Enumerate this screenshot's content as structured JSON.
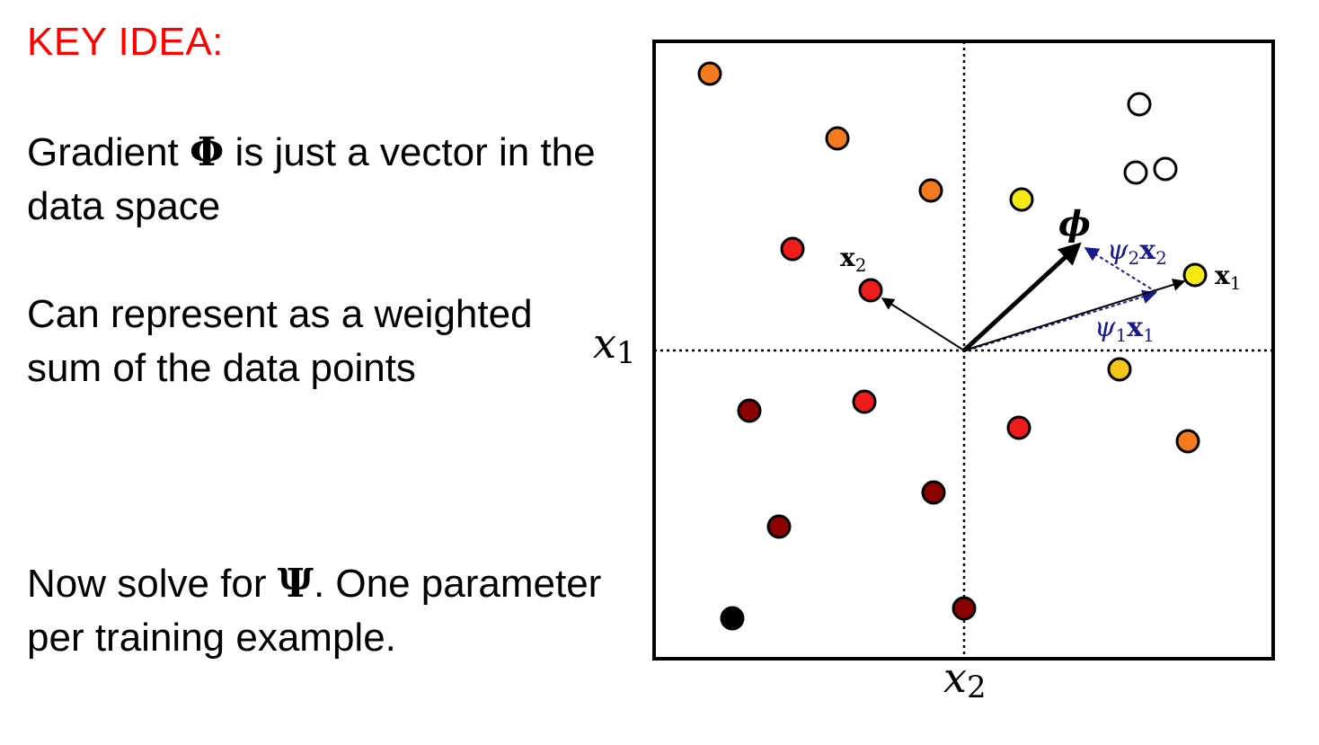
{
  "heading": "KEY IDEA:",
  "bullets": [
    {
      "pre": "Gradient ",
      "sym": "Φ",
      "post": " is just a vector in the data space"
    },
    {
      "pre": "Can represent as a weighted sum of the data points",
      "sym": "",
      "post": ""
    },
    {
      "pre": "Now solve for ",
      "sym": "Ψ",
      "post": ".  One parameter per training example."
    }
  ],
  "diagram": {
    "axis_x1_label": "x",
    "axis_x1_sub": "1",
    "axis_x2_label": "x",
    "axis_x2_sub": "2",
    "vec_x1_label": "x",
    "vec_x1_sub": "1",
    "vec_x2_label": "x",
    "vec_x2_sub": "2",
    "phi_label": "ϕ",
    "psi1_label": "ψ",
    "psi1_sub": "1",
    "psi1_vec": "x",
    "psi1_vec_sub": "1",
    "psi2_label": "ψ",
    "psi2_sub": "2",
    "psi2_vec": "x",
    "psi2_vec_sub": "2",
    "colors": {
      "orange": "#f47a20",
      "red": "#ee1c1c",
      "darkred": "#8b0000",
      "yellow": "#f5ea14",
      "gold": "#f5c518",
      "black": "#000000",
      "white": "#ffffff",
      "projection": "#1a1a8c"
    },
    "points": [
      {
        "color": "orange"
      },
      {
        "color": "orange"
      },
      {
        "color": "orange"
      },
      {
        "color": "yellow"
      },
      {
        "color": "white"
      },
      {
        "color": "white"
      },
      {
        "color": "white"
      },
      {
        "color": "red"
      },
      {
        "color": "red"
      },
      {
        "color": "yellow"
      },
      {
        "color": "gold"
      },
      {
        "color": "darkred"
      },
      {
        "color": "red"
      },
      {
        "color": "red"
      },
      {
        "color": "orange"
      },
      {
        "color": "darkred"
      },
      {
        "color": "darkred"
      },
      {
        "color": "black"
      },
      {
        "color": "darkred"
      }
    ]
  }
}
